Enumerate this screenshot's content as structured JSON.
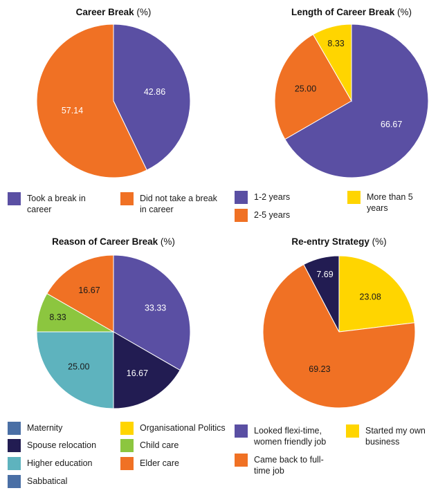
{
  "chart_data": [
    {
      "type": "pie",
      "title": "Career Break",
      "title_suffix": "(%)",
      "values": [
        42.86,
        57.14
      ],
      "value_labels": [
        "42.86",
        "57.14"
      ],
      "labels": [
        "Took a break in career",
        "Did not take a break in career"
      ],
      "colors": [
        "#5a4fa3",
        "#f07124"
      ],
      "label_colors": [
        "#ffffff",
        "#ffffff"
      ]
    },
    {
      "type": "pie",
      "title": "Length of Career Break",
      "title_suffix": "(%)",
      "values": [
        66.67,
        25.0,
        8.33
      ],
      "value_labels": [
        "66.67",
        "25.00",
        "8.33"
      ],
      "labels": [
        "1-2 years",
        "2-5 years",
        "More than 5 years"
      ],
      "colors": [
        "#5a4fa3",
        "#f07124",
        "#ffd500"
      ],
      "label_colors": [
        "#ffffff",
        "#1a1a1a",
        "#1a1a1a"
      ]
    },
    {
      "type": "pie",
      "title": "Reason of Career Break",
      "title_suffix": "(%)",
      "values": [
        33.33,
        16.67,
        25.0,
        8.33,
        16.67
      ],
      "value_labels": [
        "33.33",
        "16.67",
        "25.00",
        "8.33",
        "16.67"
      ],
      "slice_colors": [
        "#5a4fa3",
        "#221c52",
        "#5eb3be",
        "#8cc63f",
        "#f07124"
      ],
      "label_colors": [
        "#ffffff",
        "#ffffff",
        "#1a1a1a",
        "#1a1a1a",
        "#1a1a1a"
      ],
      "legend": [
        {
          "label": "Maternity",
          "color": "#4a6fa5"
        },
        {
          "label": "Spouse relocation",
          "color": "#221c52"
        },
        {
          "label": "Higher education",
          "color": "#5eb3be"
        },
        {
          "label": "Sabbatical",
          "color": "#4a6fa5"
        },
        {
          "label": "Organisational Politics",
          "color": "#ffd500"
        },
        {
          "label": "Child care",
          "color": "#8cc63f"
        },
        {
          "label": "Elder care",
          "color": "#f07124"
        }
      ]
    },
    {
      "type": "pie",
      "title": "Re-entry Strategy",
      "title_suffix": "(%)",
      "values": [
        23.08,
        69.23,
        7.69
      ],
      "value_labels": [
        "23.08",
        "69.23",
        "7.69"
      ],
      "slice_colors": [
        "#ffd500",
        "#f07124",
        "#221c52"
      ],
      "label_colors": [
        "#1a1a1a",
        "#1a1a1a",
        "#ffffff"
      ],
      "legend": [
        {
          "label": "Looked flexi-time, women friendly job",
          "color": "#5a4fa3"
        },
        {
          "label": "Came back to full-time job",
          "color": "#f07124"
        },
        {
          "label": "Started my own business",
          "color": "#ffd500"
        }
      ]
    }
  ]
}
